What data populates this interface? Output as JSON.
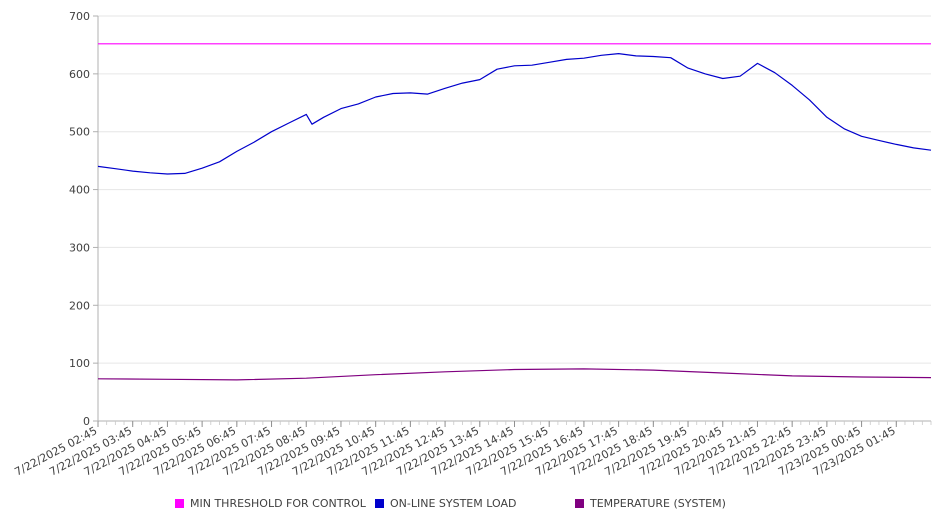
{
  "chart_data": {
    "type": "line",
    "ylim": [
      0,
      700
    ],
    "yticks": [
      0,
      100,
      200,
      300,
      400,
      500,
      600,
      700
    ],
    "x_tick_labels": [
      "7/22/2025 02:45",
      "7/22/2025 03:45",
      "7/22/2025 04:45",
      "7/22/2025 05:45",
      "7/22/2025 06:45",
      "7/22/2025 07:45",
      "7/22/2025 08:45",
      "7/22/2025 09:45",
      "7/22/2025 10:45",
      "7/22/2025 11:45",
      "7/22/2025 12:45",
      "7/22/2025 13:45",
      "7/22/2025 14:45",
      "7/22/2025 15:45",
      "7/22/2025 16:45",
      "7/22/2025 17:45",
      "7/22/2025 18:45",
      "7/22/2025 19:45",
      "7/22/2025 20:45",
      "7/22/2025 21:45",
      "7/22/2025 22:45",
      "7/22/2025 23:45",
      "7/23/2025 00:45",
      "7/23/2025 01:45"
    ],
    "x_range": [
      "7/22/2025 02:45",
      "7/23/2025 02:45"
    ],
    "grid": true,
    "legend_position": "bottom",
    "series": [
      {
        "name": "MIN THRESHOLD FOR CONTROL",
        "color": "#ff00ff",
        "x": [
          "7/22/2025 02:45",
          "7/23/2025 02:45"
        ],
        "y": [
          652,
          652
        ]
      },
      {
        "name": "ON-LINE SYSTEM LOAD",
        "color": "#0000cc",
        "x": [
          "7/22/2025 02:45",
          "7/22/2025 03:15",
          "7/22/2025 03:45",
          "7/22/2025 04:15",
          "7/22/2025 04:45",
          "7/22/2025 05:15",
          "7/22/2025 05:45",
          "7/22/2025 06:15",
          "7/22/2025 06:45",
          "7/22/2025 07:15",
          "7/22/2025 07:45",
          "7/22/2025 08:15",
          "7/22/2025 08:45",
          "7/22/2025 08:55",
          "7/22/2025 09:15",
          "7/22/2025 09:45",
          "7/22/2025 10:15",
          "7/22/2025 10:45",
          "7/22/2025 11:15",
          "7/22/2025 11:45",
          "7/22/2025 12:15",
          "7/22/2025 12:45",
          "7/22/2025 13:15",
          "7/22/2025 13:45",
          "7/22/2025 14:15",
          "7/22/2025 14:45",
          "7/22/2025 15:15",
          "7/22/2025 15:45",
          "7/22/2025 16:15",
          "7/22/2025 16:45",
          "7/22/2025 17:15",
          "7/22/2025 17:45",
          "7/22/2025 18:15",
          "7/22/2025 18:45",
          "7/22/2025 19:15",
          "7/22/2025 19:45",
          "7/22/2025 20:15",
          "7/22/2025 20:45",
          "7/22/2025 21:15",
          "7/22/2025 21:45",
          "7/22/2025 22:15",
          "7/22/2025 22:45",
          "7/22/2025 23:15",
          "7/22/2025 23:45",
          "7/23/2025 00:15",
          "7/23/2025 00:45",
          "7/23/2025 01:15",
          "7/23/2025 01:45",
          "7/23/2025 02:15",
          "7/23/2025 02:45"
        ],
        "y": [
          440,
          436,
          432,
          429,
          427,
          428,
          437,
          448,
          466,
          482,
          500,
          515,
          530,
          513,
          525,
          540,
          548,
          560,
          566,
          567,
          565,
          575,
          584,
          590,
          608,
          614,
          615,
          620,
          625,
          627,
          632,
          635,
          631,
          630,
          628,
          610,
          600,
          592,
          596,
          618,
          602,
          580,
          555,
          525,
          505,
          492,
          485,
          478,
          472,
          468
        ]
      },
      {
        "name": "TEMPERATURE (SYSTEM)",
        "color": "#800080",
        "x": [
          "7/22/2025 02:45",
          "7/22/2025 04:45",
          "7/22/2025 06:45",
          "7/22/2025 08:45",
          "7/22/2025 10:45",
          "7/22/2025 12:45",
          "7/22/2025 14:45",
          "7/22/2025 16:45",
          "7/22/2025 18:45",
          "7/22/2025 20:45",
          "7/22/2025 22:45",
          "7/23/2025 00:45",
          "7/23/2025 02:45"
        ],
        "y": [
          73,
          72,
          71,
          74,
          80,
          85,
          89,
          90,
          88,
          83,
          78,
          76,
          75
        ]
      }
    ]
  }
}
